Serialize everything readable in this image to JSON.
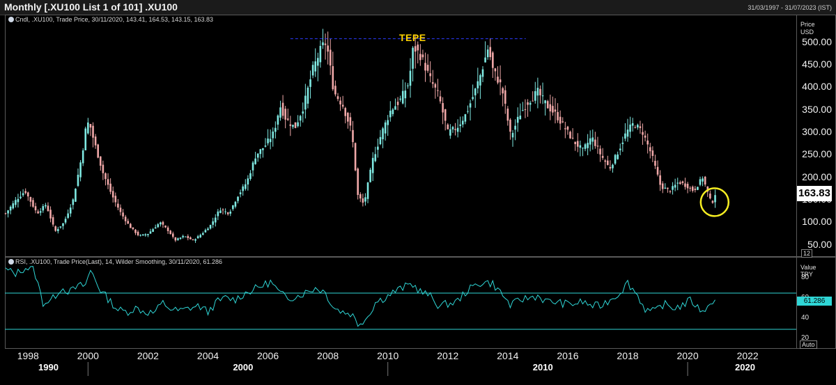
{
  "window": {
    "title": "Monthly [.XU100 List 1 of 101] .XU100",
    "date_range": "31/03/1997 - 31/07/2023 (IST)"
  },
  "price_panel": {
    "legend": "Cndl, .XU100, Trade Price, 30/11/2020, 143.41, 164.53, 143.15, 163.83",
    "axis_label_line1": "Price",
    "axis_label_line2": "USD",
    "last_value": "163.83",
    "page_box": "12",
    "annotation": "TEPE",
    "colors": {
      "up": "#7fe9e2",
      "down": "#f0a8a8",
      "resistance": "#2b3cff",
      "highlight": "#f6ee22"
    }
  },
  "rsi_panel": {
    "legend": "RSI, .XU100, Trade Price(Last),  14, Wilder Smoothing, 30/11/2020, 61.286",
    "axis_label_line1": "Value",
    "axis_label_line2": "TRY",
    "last_value": "61.286",
    "auto_box": "Auto",
    "line_color": "#2fd6d6"
  },
  "x_axis": {
    "years": [
      "1998",
      "2000",
      "2002",
      "2004",
      "2006",
      "2008",
      "2010",
      "2012",
      "2014",
      "2016",
      "2018",
      "2020",
      "2022"
    ],
    "decades": [
      "1990",
      "2000",
      "2010",
      "2020"
    ]
  },
  "chart_data": [
    {
      "type": "candlestick",
      "title": "",
      "ylabel": "Price USD",
      "ylim": [
        25,
        560
      ],
      "yticks": [
        "500.00",
        "450.00",
        "400.00",
        "350.00",
        "300.00",
        "250.00",
        "200.00",
        "150.00",
        "100.00",
        "50.00"
      ],
      "xlim": [
        1997.25,
        2023.6
      ],
      "resistance_level": 508,
      "resistance_span": [
        2006.75,
        2014.6
      ],
      "highlight_circle": {
        "x": 2020.9,
        "y": 145
      },
      "series": [
        {
          "x": [
            1997.25,
            1997.6,
            1997.9,
            1998.3,
            1998.6,
            1998.9,
            1999.2,
            1999.5,
            1999.8,
            1999.95,
            2000.05,
            2000.2,
            2000.5,
            2000.8,
            2001.1,
            2001.4,
            2001.7,
            2002.0,
            2002.4,
            2002.7,
            2002.9,
            2003.2,
            2003.5,
            2003.8,
            2004.1,
            2004.4,
            2004.7,
            2005.0,
            2005.3,
            2005.6,
            2005.9,
            2006.2,
            2006.4,
            2006.6,
            2006.9,
            2007.2,
            2007.5,
            2007.8,
            2007.95,
            2008.2,
            2008.5,
            2008.8,
            2009.0,
            2009.2,
            2009.5,
            2009.8,
            2010.1,
            2010.4,
            2010.7,
            2010.85,
            2011.1,
            2011.4,
            2011.7,
            2012.0,
            2012.3,
            2012.6,
            2012.9,
            2013.1,
            2013.35,
            2013.5,
            2013.8,
            2014.1,
            2014.4,
            2014.7,
            2015.0,
            2015.3,
            2015.6,
            2015.9,
            2016.2,
            2016.5,
            2016.8,
            2017.1,
            2017.4,
            2017.7,
            2017.95,
            2018.2,
            2018.5,
            2018.8,
            2019.1,
            2019.4,
            2019.7,
            2020.0,
            2020.2,
            2020.5,
            2020.8,
            2020.92
          ],
          "y": [
            120,
            150,
            170,
            120,
            140,
            80,
            100,
            150,
            250,
            320,
            320,
            280,
            210,
            160,
            120,
            90,
            70,
            75,
            100,
            80,
            60,
            70,
            60,
            75,
            95,
            130,
            120,
            160,
            190,
            250,
            270,
            300,
            360,
            330,
            310,
            360,
            440,
            490,
            500,
            390,
            360,
            300,
            160,
            140,
            240,
            300,
            350,
            370,
            410,
            490,
            470,
            420,
            380,
            300,
            310,
            340,
            390,
            430,
            490,
            440,
            400,
            290,
            340,
            370,
            390,
            360,
            340,
            310,
            280,
            260,
            290,
            250,
            220,
            260,
            300,
            320,
            300,
            250,
            180,
            170,
            190,
            180,
            170,
            200,
            140,
            163.83
          ]
        }
      ]
    },
    {
      "type": "line",
      "title": "",
      "ylabel": "Value TRY",
      "ylim": [
        10,
        100
      ],
      "yticks": [
        "80",
        "60",
        "40",
        "20"
      ],
      "xlim": [
        1997.25,
        2023.6
      ],
      "series": [
        {
          "name": "RSI 14",
          "x": [
            1997.25,
            1997.6,
            1997.9,
            1998.2,
            1998.5,
            1998.8,
            1999.1,
            1999.4,
            1999.7,
            1999.9,
            2000.1,
            2000.4,
            2000.7,
            2001.0,
            2001.3,
            2001.6,
            2001.9,
            2002.2,
            2002.5,
            2002.8,
            2003.1,
            2003.4,
            2003.7,
            2004.0,
            2004.3,
            2004.6,
            2004.9,
            2005.2,
            2005.5,
            2005.8,
            2006.1,
            2006.4,
            2006.7,
            2007.0,
            2007.3,
            2007.6,
            2007.9,
            2008.2,
            2008.5,
            2008.8,
            2009.0,
            2009.3,
            2009.6,
            2009.9,
            2010.2,
            2010.5,
            2010.8,
            2011.1,
            2011.4,
            2011.7,
            2012.0,
            2012.3,
            2012.6,
            2012.9,
            2013.2,
            2013.5,
            2013.8,
            2014.1,
            2014.4,
            2014.7,
            2015.0,
            2015.3,
            2015.6,
            2015.9,
            2016.2,
            2016.5,
            2016.8,
            2017.1,
            2017.4,
            2017.7,
            2018.0,
            2018.3,
            2018.6,
            2018.9,
            2019.2,
            2019.5,
            2019.8,
            2020.1,
            2020.4,
            2020.7,
            2020.92
          ],
          "y": [
            88,
            84,
            90,
            88,
            55,
            58,
            70,
            66,
            72,
            72,
            88,
            68,
            58,
            48,
            46,
            50,
            46,
            45,
            55,
            48,
            47,
            50,
            52,
            46,
            56,
            60,
            58,
            64,
            68,
            72,
            76,
            64,
            60,
            62,
            66,
            70,
            66,
            50,
            46,
            44,
            34,
            40,
            56,
            60,
            66,
            70,
            74,
            66,
            62,
            52,
            54,
            56,
            66,
            72,
            76,
            74,
            64,
            52,
            58,
            60,
            62,
            56,
            56,
            54,
            54,
            56,
            52,
            52,
            58,
            64,
            75,
            64,
            48,
            46,
            54,
            50,
            52,
            58,
            48,
            50,
            61.286
          ]
        }
      ]
    }
  ]
}
